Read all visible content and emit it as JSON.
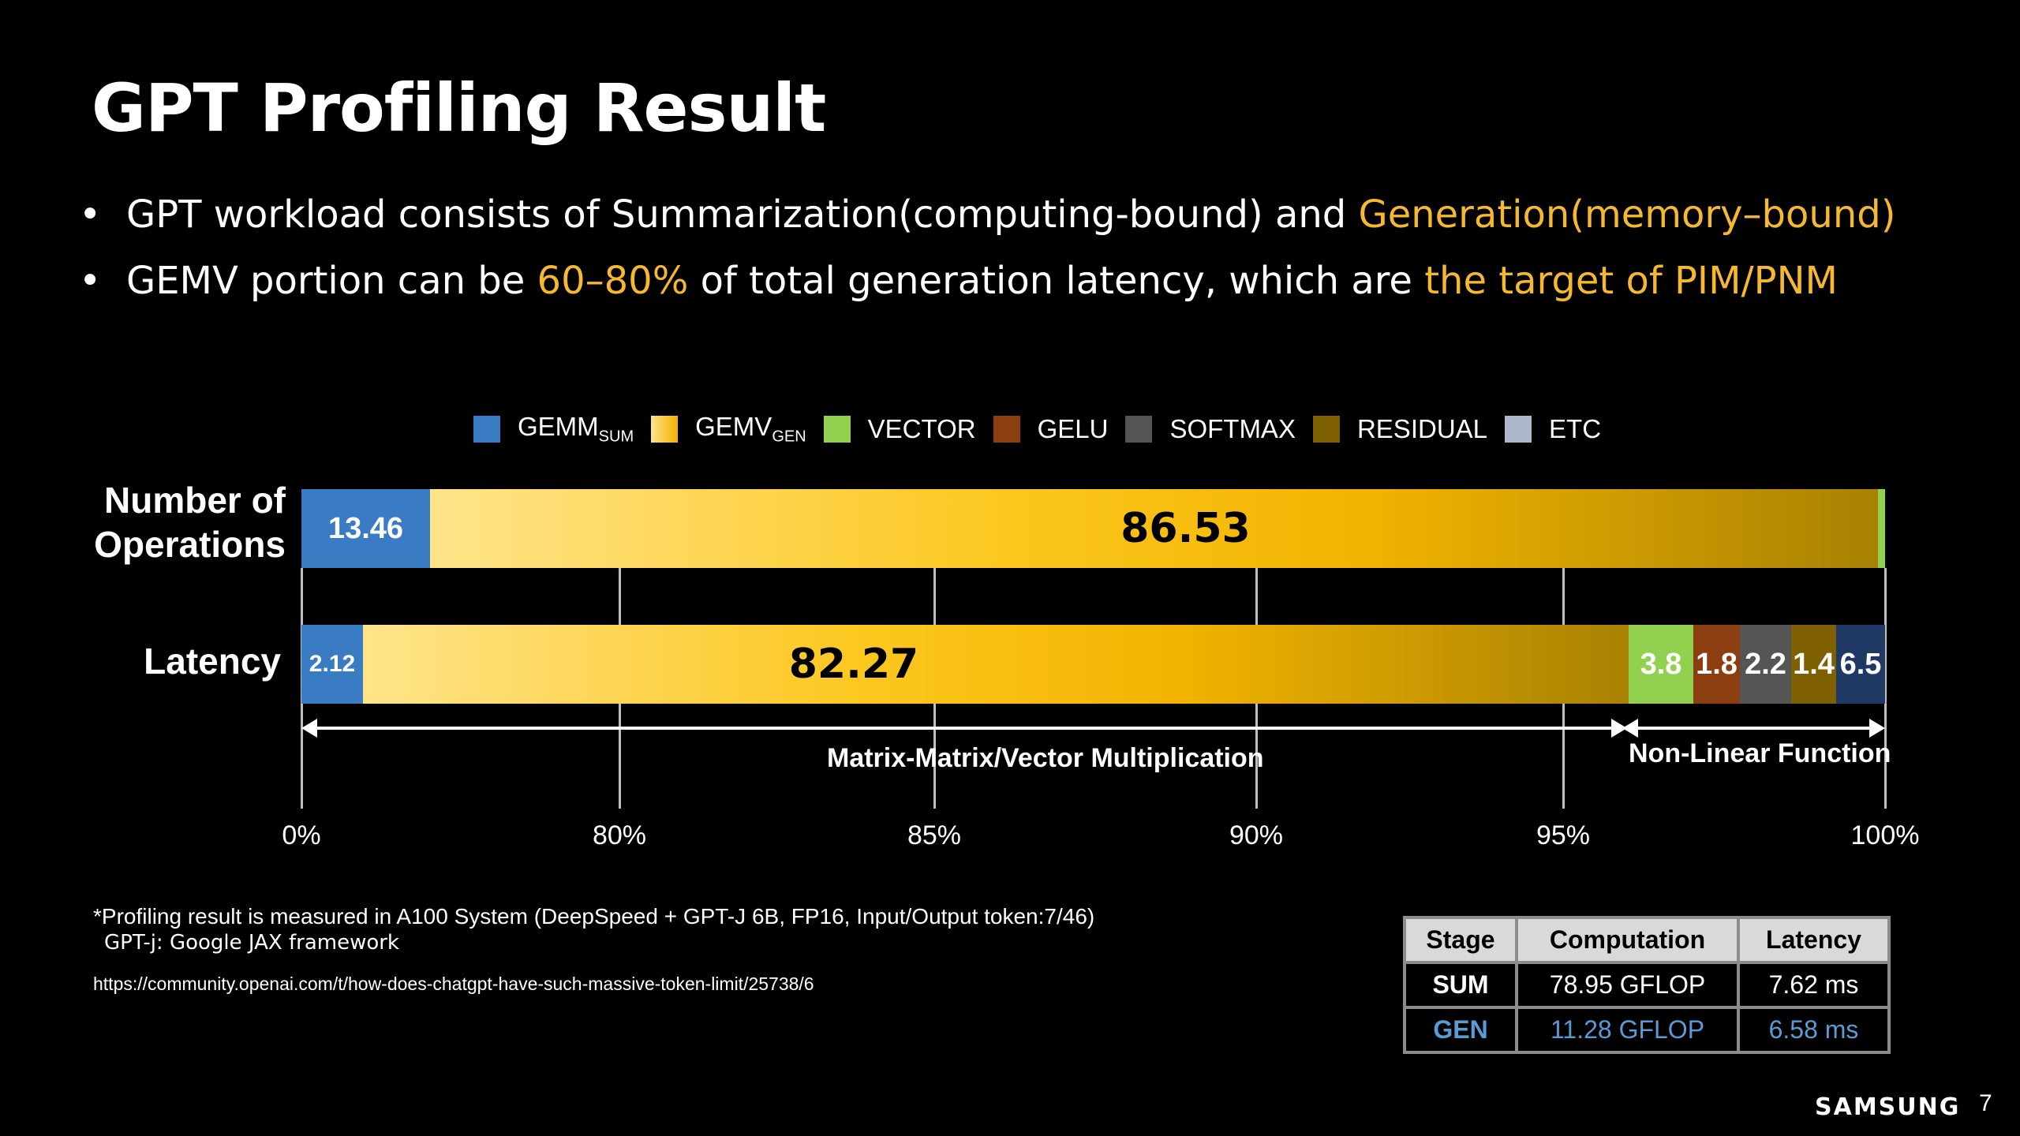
{
  "title": "GPT Profiling Result",
  "bullets": [
    {
      "a": "GPT workload consists of Summarization(computing-bound) and ",
      "b": "Generation(memory–bound)",
      "c": "",
      "d": ""
    },
    {
      "a": "GEMV portion can be ",
      "b": "60–80%",
      "c": " of total generation latency, which are ",
      "d": "the target of PIM/PNM"
    }
  ],
  "bullet_symbol": "•",
  "colors": {
    "highlight": "#f5b82e",
    "gemm": "#3a7cc4",
    "vector": "#92d050",
    "gelu": "#8b3e0f",
    "softmax": "#555555",
    "residual": "#7f6000",
    "etc_legend": "#adb9ca",
    "etc_bar": "#203864",
    "gen_text": "#5b9bd5"
  },
  "chart_data": {
    "type": "bar",
    "orientation": "horizontal",
    "stacked": true,
    "legend": [
      {
        "name": "GEMM",
        "sub": "SUM"
      },
      {
        "name": "GEMV",
        "sub": "GEN"
      },
      {
        "name": "VECTOR",
        "sub": ""
      },
      {
        "name": "GELU",
        "sub": ""
      },
      {
        "name": "SOFTMAX",
        "sub": ""
      },
      {
        "name": "RESIDUAL",
        "sub": ""
      },
      {
        "name": "ETC",
        "sub": ""
      }
    ],
    "legend_position": "top",
    "categories": [
      "Number of Operations",
      "Latency"
    ],
    "series": [
      {
        "name": "GEMM_SUM",
        "values": [
          13.46,
          2.12
        ],
        "labels": [
          "13.46",
          "2.12"
        ]
      },
      {
        "name": "GEMV_GEN",
        "values": [
          86.53,
          82.27
        ],
        "labels": [
          "86.53",
          "82.27"
        ]
      },
      {
        "name": "VECTOR",
        "values": [
          0,
          3.8
        ],
        "labels": [
          "",
          "3.8"
        ]
      },
      {
        "name": "GELU",
        "values": [
          0.01,
          1.8
        ],
        "labels": [
          "",
          "1.8"
        ]
      },
      {
        "name": "SOFTMAX",
        "values": [
          0,
          2.2
        ],
        "labels": [
          "",
          "2.2"
        ]
      },
      {
        "name": "RESIDUAL",
        "values": [
          0,
          1.4
        ],
        "labels": [
          "",
          "1.4"
        ]
      },
      {
        "name": "ETC",
        "values": [
          0,
          6.5
        ],
        "labels": [
          "",
          "6.5"
        ]
      }
    ],
    "xticks": [
      "0%",
      "80%",
      "85%",
      "90%",
      "95%",
      "100%"
    ],
    "axis_note": "broken axis: 0% then 80%-100%",
    "grid": true,
    "annotations": [
      "Matrix-Matrix/Vector Multiplication",
      "Non-Linear Function"
    ]
  },
  "footnotes": [
    "*Profiling result is measured in A100 System (DeepSpeed + GPT-J 6B, FP16, Input/Output token:7/46)",
    "GPT-j: Google JAX framework",
    "https://community.openai.com/t/how-does-chatgpt-have-such-massive-token-limit/25738/6"
  ],
  "table": {
    "headers": [
      "Stage",
      "Computation",
      "Latency"
    ],
    "rows": [
      [
        "SUM",
        "78.95 GFLOP",
        "7.62 ms"
      ],
      [
        "GEN",
        "11.28 GFLOP",
        "6.58 ms"
      ]
    ]
  },
  "brand": "SAMSUNG",
  "page_number": "7"
}
